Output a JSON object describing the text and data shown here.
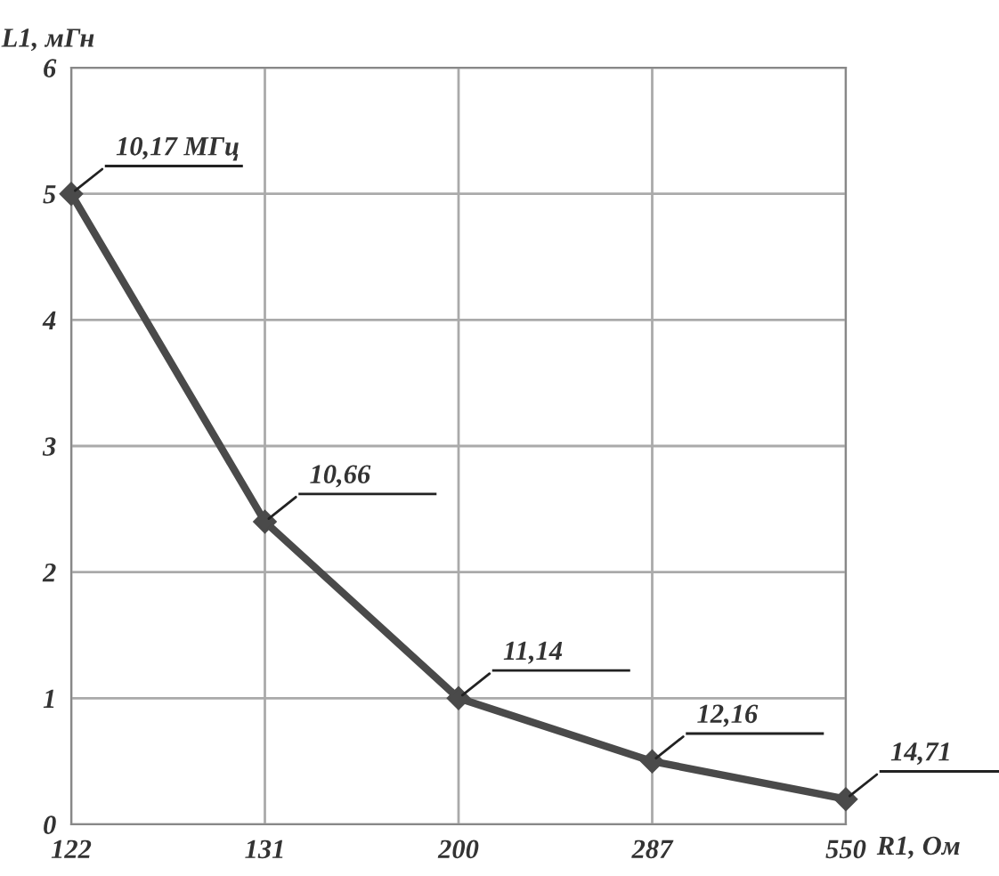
{
  "chart_data": {
    "type": "line",
    "xlabel": "R1, Ом",
    "ylabel": "L1, мГн",
    "categories": [
      "122",
      "131",
      "200",
      "287",
      "550"
    ],
    "series": [
      {
        "color": "#4a4a4a",
        "values": [
          5,
          2.4,
          1.0,
          0.5,
          0.2
        ]
      }
    ],
    "ylim": [
      0,
      6
    ],
    "yticks": [
      0,
      1,
      2,
      3,
      4,
      5,
      6
    ],
    "grid": true,
    "marker": "diamond",
    "line_style": "solid",
    "annotations": [
      {
        "text": "10,17 МГц",
        "x": "122",
        "y": 5
      },
      {
        "text": "10,66",
        "x": "131",
        "y": 2.4
      },
      {
        "text": "11,14",
        "x": "200",
        "y": 1.0
      },
      {
        "text": "12,16",
        "x": "287",
        "y": 0.5
      },
      {
        "text": "14,71",
        "x": "550",
        "y": 0.2
      }
    ]
  }
}
